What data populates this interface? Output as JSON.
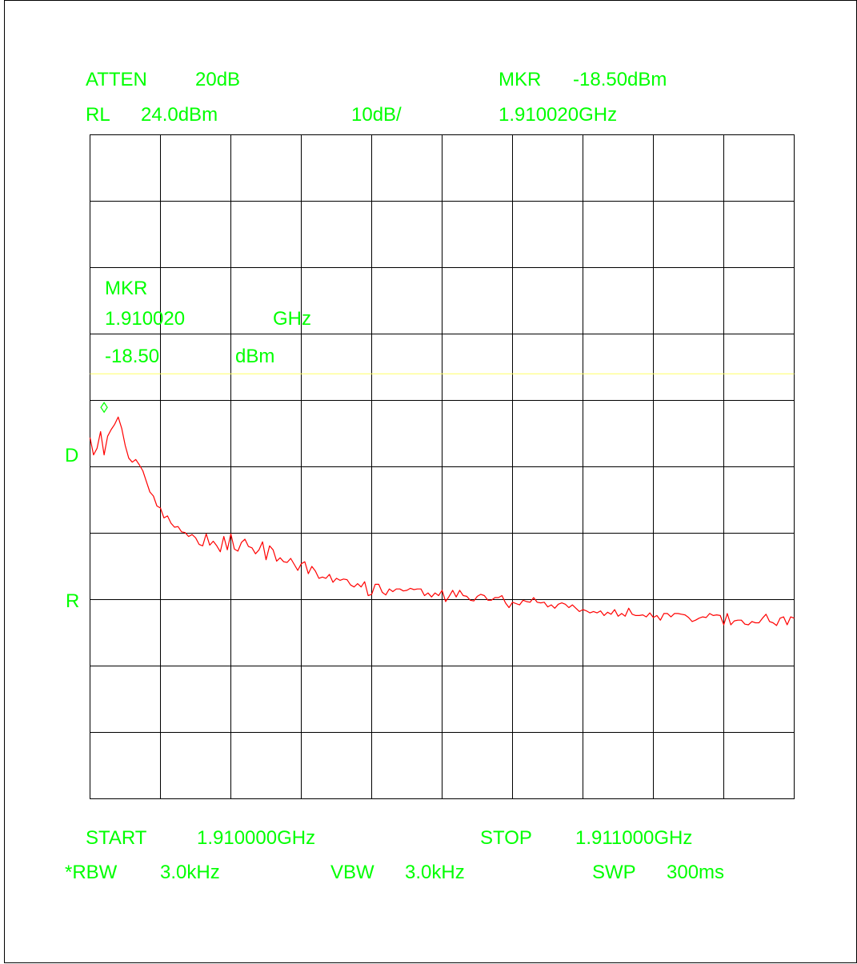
{
  "header": {
    "atten_label": "ATTEN",
    "atten_value": "20dB",
    "rl_label": "RL",
    "rl_value": "24.0dBm",
    "scale": "10dB/",
    "mkr_label": "MKR",
    "mkr_amplitude": "-18.50dBm",
    "mkr_frequency": "1.910020GHz"
  },
  "marker_box": {
    "title": "MKR",
    "frequency": "1.910020",
    "frequency_unit": "GHz",
    "amplitude": "-18.50",
    "amplitude_unit": "dBm"
  },
  "side_labels": {
    "d": "D",
    "r": "R"
  },
  "footer": {
    "start_label": "START",
    "start_value": "1.910000GHz",
    "stop_label": "STOP",
    "stop_value": "1.911000GHz",
    "rbw_label": "*RBW",
    "rbw_value": "3.0kHz",
    "vbw_label": "VBW",
    "vbw_value": "3.0kHz",
    "swp_label": "SWP",
    "swp_value": "300ms"
  },
  "colors": {
    "text": "#00ff00",
    "trace": "#ff0000",
    "grid": "#000000",
    "threshold_line": "#ffff66",
    "marker": "#00ff00"
  },
  "chart_data": {
    "type": "line",
    "title": "",
    "xlabel": "",
    "ylabel": "",
    "xlim": [
      1.91,
      1.911
    ],
    "ylim": [
      -76.0,
      24.0
    ],
    "x_unit": "GHz",
    "y_unit": "dBm",
    "x_divisions": 10,
    "y_divisions": 10,
    "grid": true,
    "threshold_level_dbm": -12.0,
    "marker": {
      "x": 1.91002,
      "y": -18.5
    },
    "series": [
      {
        "x_start": 1.91,
        "x_stop": 1.911,
        "values": [
          -21.6,
          -24.2,
          -23.2,
          -20.7,
          -24.2,
          -21.4,
          -20.4,
          -19.6,
          -18.5,
          -20.2,
          -22.8,
          -24.7,
          -25.3,
          -24.9,
          -25.7,
          -26.6,
          -28.2,
          -29.8,
          -30.4,
          -31.9,
          -32.2,
          -33.7,
          -33.4,
          -34.5,
          -35.1,
          -35.0,
          -35.8,
          -35.9,
          -36.5,
          -36.2,
          -36.7,
          -37.7,
          -37.9,
          -36.1,
          -37.8,
          -37.2,
          -37.9,
          -38.8,
          -36.5,
          -38.5,
          -36.1,
          -38.4,
          -38.7,
          -37.4,
          -36.9,
          -38.0,
          -38.2,
          -39.1,
          -38.5,
          -37.3,
          -40.0,
          -37.9,
          -38.5,
          -40.2,
          -39.7,
          -40.3,
          -40.4,
          -39.8,
          -40.7,
          -41.6,
          -40.6,
          -40.3,
          -42.1,
          -41.0,
          -41.7,
          -42.8,
          -42.6,
          -42.8,
          -42.2,
          -43.4,
          -42.8,
          -43.1,
          -42.9,
          -43.0,
          -43.8,
          -44.1,
          -43.6,
          -44.1,
          -43.3,
          -45.4,
          -45.2,
          -43.7,
          -43.7,
          -44.9,
          -45.3,
          -44.4,
          -44.8,
          -44.4,
          -44.4,
          -44.7,
          -44.6,
          -44.3,
          -44.5,
          -44.4,
          -44.4,
          -45.4,
          -45.0,
          -45.6,
          -45.0,
          -45.4,
          -44.6,
          -46.3,
          -45.5,
          -44.6,
          -45.6,
          -44.6,
          -45.4,
          -45.5,
          -46.1,
          -46.2,
          -45.5,
          -45.2,
          -45.4,
          -46.1,
          -46.1,
          -45.7,
          -45.7,
          -45.4,
          -46.5,
          -47.2,
          -46.4,
          -46.6,
          -46.8,
          -46.1,
          -46.3,
          -46.4,
          -45.7,
          -46.4,
          -46.5,
          -46.4,
          -47.1,
          -46.8,
          -47.3,
          -46.7,
          -46.5,
          -46.7,
          -47.2,
          -46.8,
          -47.3,
          -47.8,
          -47.5,
          -47.7,
          -48.0,
          -47.8,
          -48.0,
          -47.7,
          -48.4,
          -47.9,
          -48.2,
          -47.5,
          -48.5,
          -48.1,
          -48.5,
          -47.3,
          -48.2,
          -48.4,
          -48.4,
          -48.3,
          -48.6,
          -48.0,
          -48.7,
          -48.4,
          -49.1,
          -48.1,
          -48.1,
          -48.6,
          -48.1,
          -48.1,
          -48.2,
          -48.3,
          -48.7,
          -49.3,
          -49.1,
          -48.8,
          -48.6,
          -48.7,
          -48.1,
          -48.4,
          -48.3,
          -48.4,
          -49.8,
          -48.1,
          -49.8,
          -49.2,
          -49.1,
          -49.1,
          -49.7,
          -49.8,
          -49.3,
          -49.5,
          -49.5,
          -48.8,
          -48.2,
          -49.3,
          -49.5,
          -49.9,
          -48.8,
          -48.6,
          -49.8,
          -48.6,
          -48.8
        ]
      }
    ]
  }
}
